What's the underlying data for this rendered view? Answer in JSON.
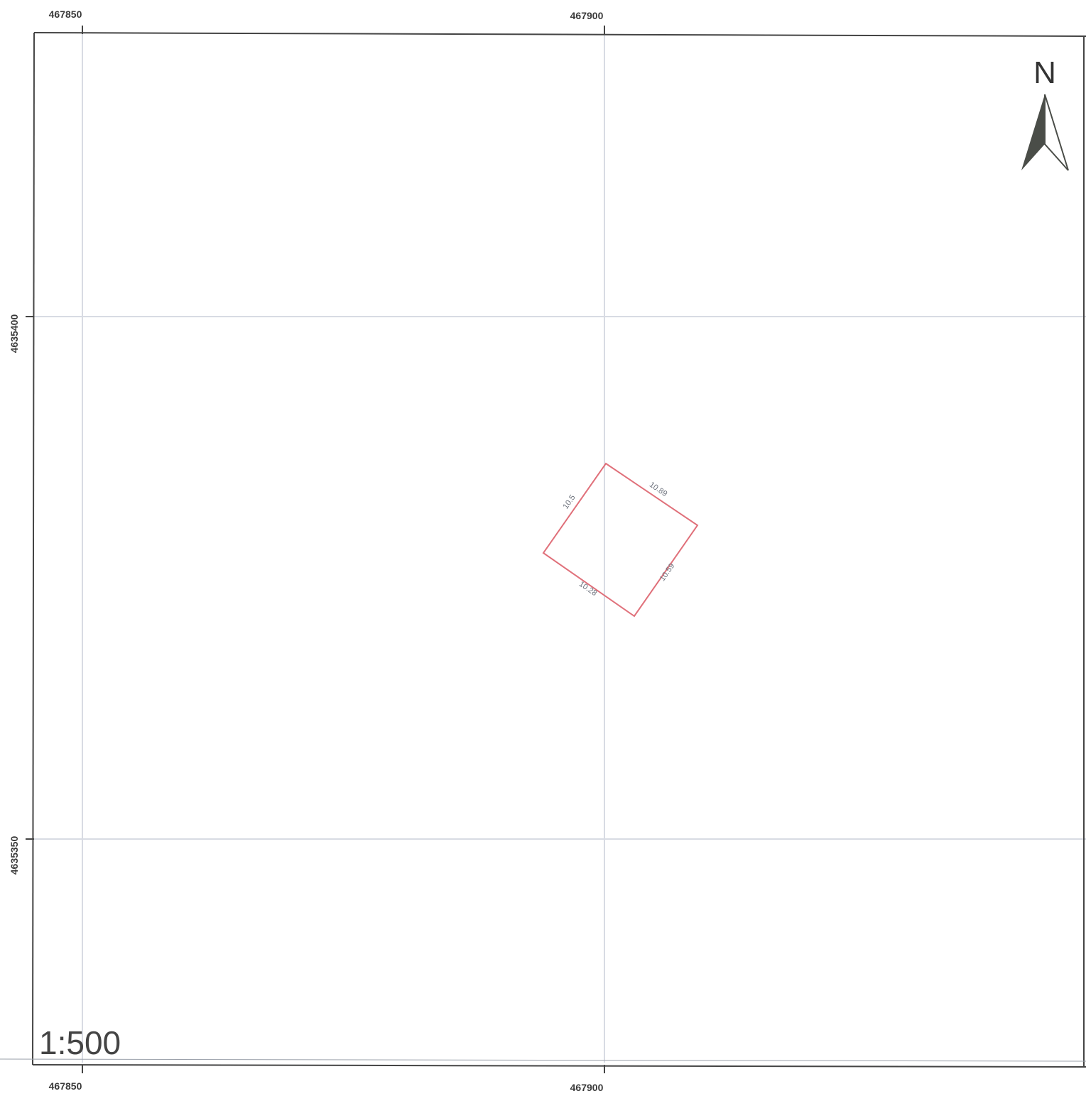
{
  "map": {
    "scale_label": "1:500",
    "north_label": "N",
    "grid": {
      "x_ticks": [
        "467850",
        "467900"
      ],
      "y_ticks": [
        "4635400",
        "4635350"
      ]
    },
    "parcel": {
      "edge_labels": [
        "10.5",
        "10.89",
        "10.59",
        "10.28"
      ]
    },
    "colors": {
      "frame": "#444444",
      "grid": "#d8dbe3",
      "parcel": "#e0707a",
      "label": "#3a3a3a",
      "north_arrow": "#4a4d48"
    },
    "icons": {
      "north_arrow": "north-arrow-icon"
    }
  }
}
